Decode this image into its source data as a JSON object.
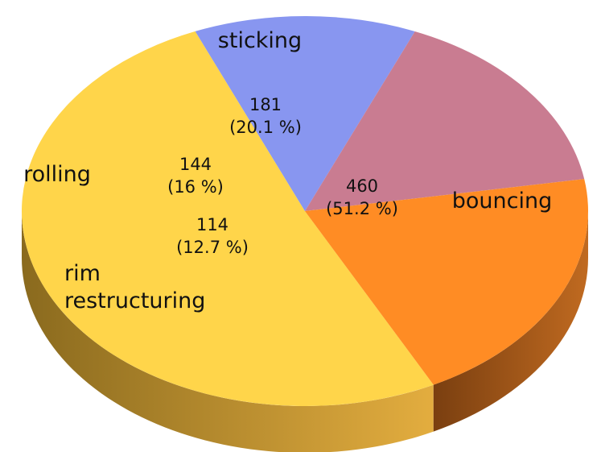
{
  "chart_data": {
    "type": "pie",
    "style": "3d",
    "slices": [
      {
        "label": "bouncing",
        "lines": [
          "bouncing"
        ],
        "value": 460,
        "percent_text": "(51.2 %)",
        "color": "#FFD54A",
        "side_dark": "#8A6A1E",
        "side_light": "#E3AD3F"
      },
      {
        "label": "rim restructuring",
        "lines": [
          "rim",
          "restructuring"
        ],
        "value": 114,
        "percent_text": "(12.7 %)",
        "color": "#8896F0",
        "side_dark": "#262B44",
        "side_light": "#3A4575"
      },
      {
        "label": "rolling",
        "lines": [
          "rolling"
        ],
        "value": 144,
        "percent_text": "(16 %)",
        "color": "#C97C91",
        "side_dark": "#2A1620",
        "side_light": "#4A2A38"
      },
      {
        "label": "sticking",
        "lines": [
          "sticking"
        ],
        "value": 181,
        "percent_text": "(20.1 %)",
        "color": "#FF8C24",
        "side_dark": "#7A3F10",
        "side_light": "#C06A20"
      }
    ]
  }
}
